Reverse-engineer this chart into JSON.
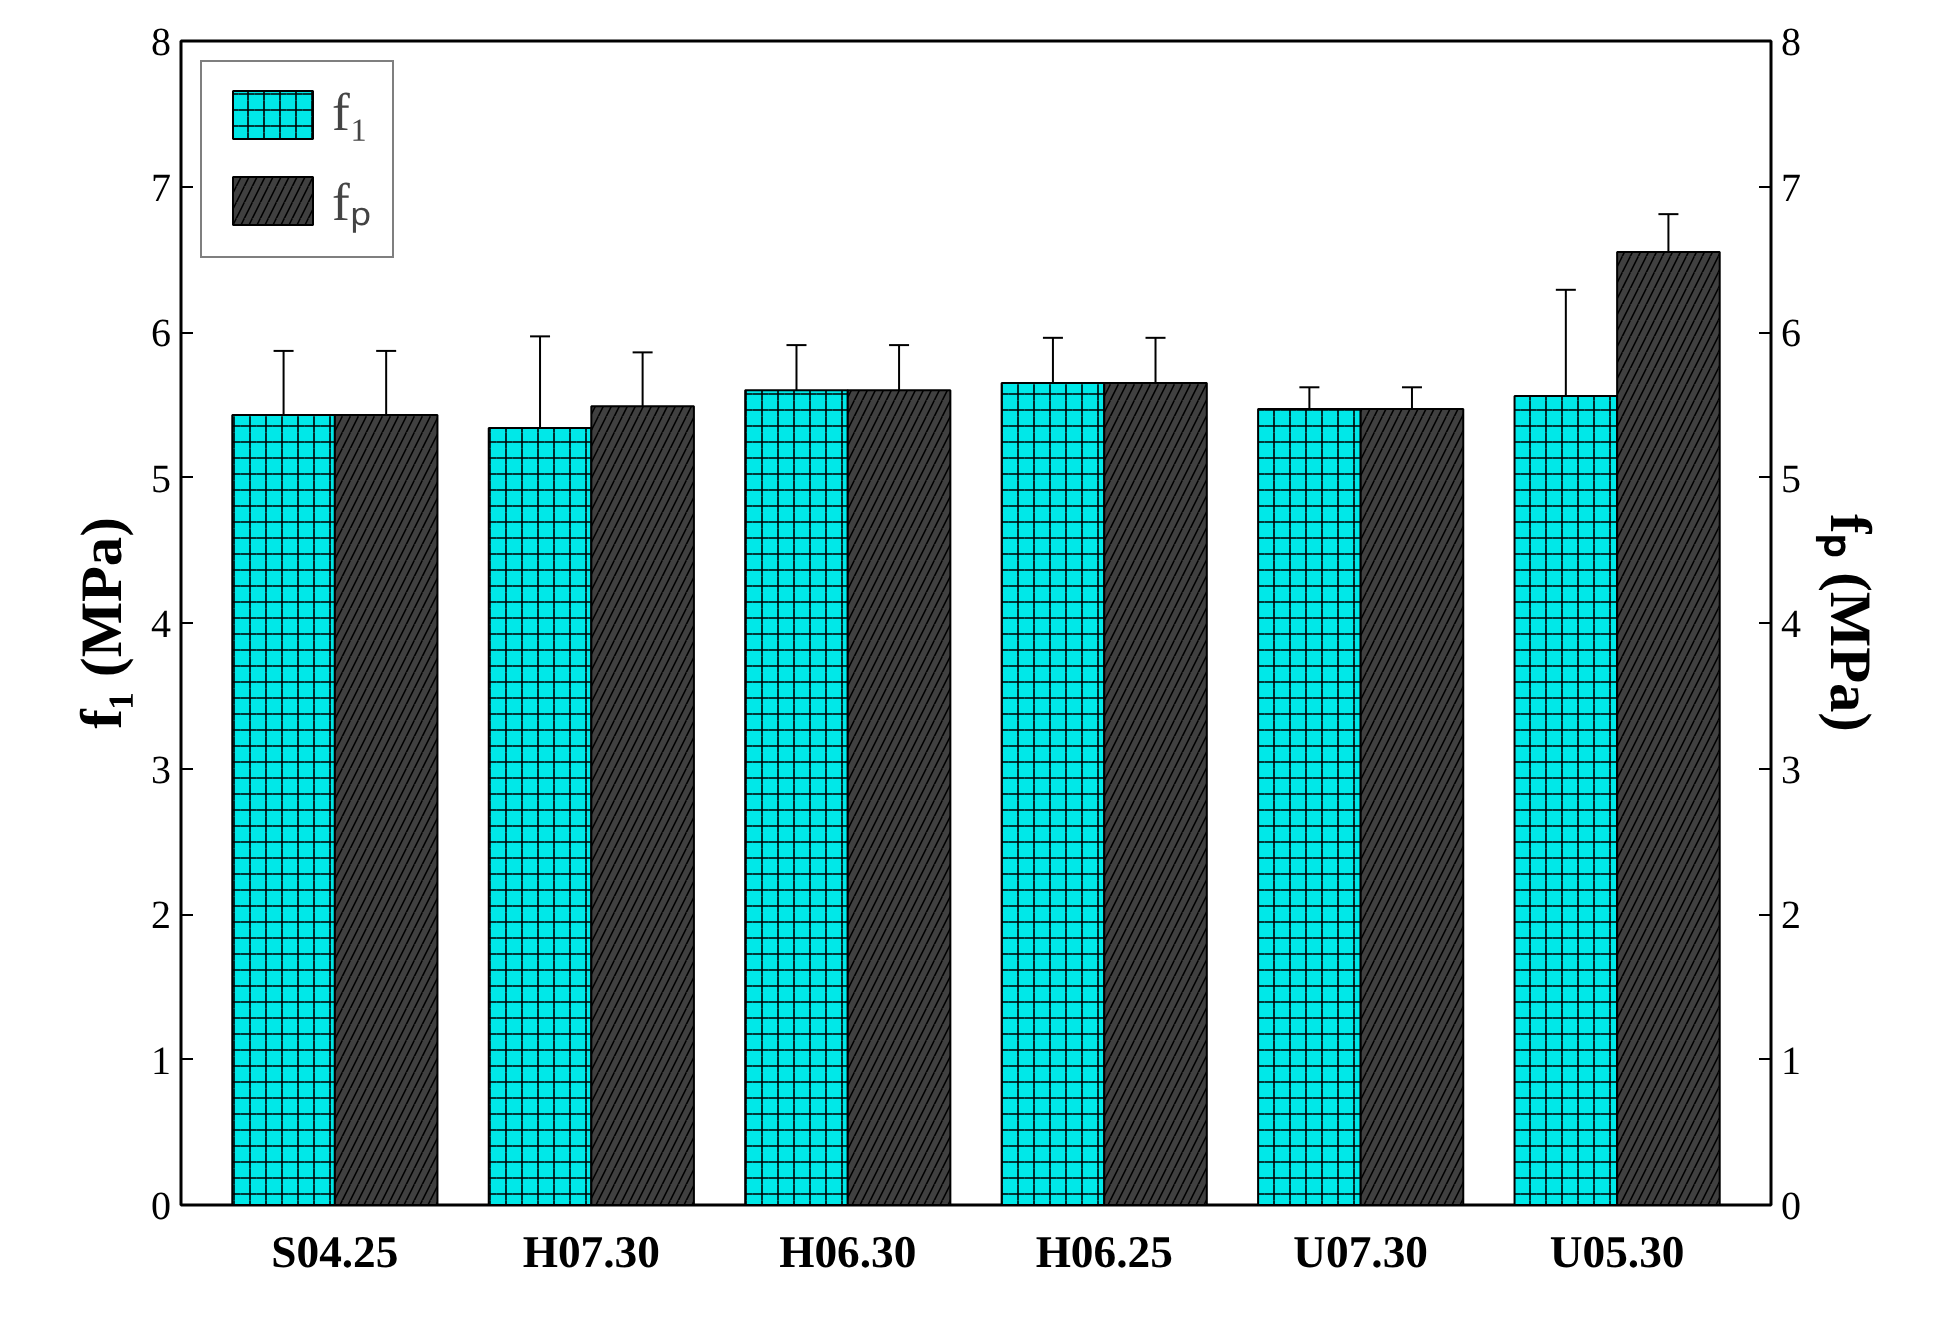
{
  "chart_data": {
    "type": "bar",
    "xlabel": null,
    "ylabel": "f₁ (MPa)",
    "y2label": "fₚ (MPa)",
    "categories": [
      "S04.25",
      "H07.30",
      "H06.30",
      "H06.25",
      "U07.30",
      "U05.30"
    ],
    "series": [
      {
        "name": "f₁",
        "color": "#00e8e8",
        "values": [
          5.43,
          5.34,
          5.6,
          5.65,
          5.47,
          5.56
        ],
        "errors": [
          0.44,
          0.63,
          0.31,
          0.31,
          0.15,
          0.73
        ]
      },
      {
        "name": "fₚ",
        "color": "#404040",
        "values": [
          5.43,
          5.49,
          5.6,
          5.65,
          5.47,
          6.55
        ],
        "errors": [
          0.44,
          0.37,
          0.31,
          0.31,
          0.15,
          0.26
        ]
      }
    ],
    "ylim": [
      0,
      8
    ],
    "yticks": [
      0,
      1,
      2,
      3,
      4,
      5,
      6,
      7,
      8
    ],
    "y2lim": [
      0,
      8
    ],
    "y2ticks": [
      0,
      1,
      2,
      3,
      4,
      5,
      6,
      7,
      8
    ],
    "grid": false,
    "legend": "top left"
  }
}
